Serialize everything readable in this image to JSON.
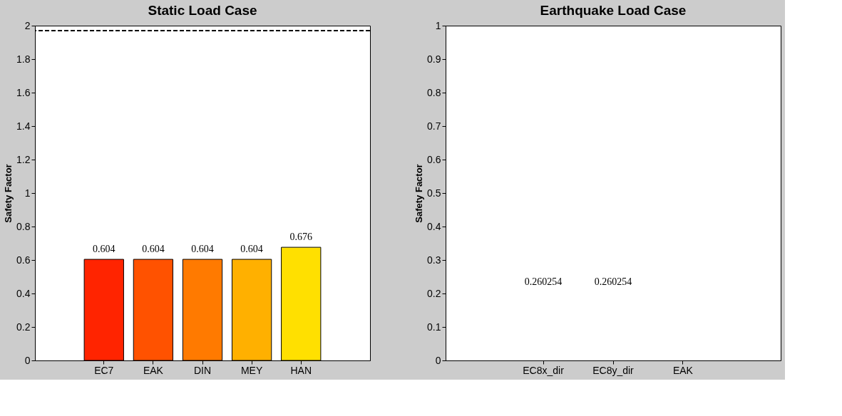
{
  "chart_data": [
    {
      "type": "bar",
      "title": "Static Load Case",
      "ylabel": "Safety Factor",
      "categories": [
        "EC7",
        "EAK",
        "DIN",
        "MEY",
        "HAN"
      ],
      "values": [
        0.604,
        0.604,
        0.604,
        0.604,
        0.676
      ],
      "colors": [
        "#ff2400",
        "#ff5200",
        "#ff7a00",
        "#ffb000",
        "#ffe000"
      ],
      "data_labels": true,
      "ylim": [
        0,
        2
      ],
      "yticks": [
        0,
        0.2,
        0.4,
        0.6,
        0.8,
        1,
        1.2,
        1.4,
        1.6,
        1.8,
        2
      ],
      "ref_lines": [
        {
          "axis": "y",
          "value": 1.97,
          "color": "#000000",
          "line_style": "dashed"
        }
      ],
      "grid": false
    },
    {
      "type": "bar",
      "title": "Earthquake Load Case",
      "ylabel": "Safety Factor",
      "categories": [
        "EC8x_dir",
        "EC8y_dir",
        "EAK"
      ],
      "values": [
        null,
        null,
        null
      ],
      "ylim": [
        0,
        1
      ],
      "yticks": [
        0,
        0.1,
        0.2,
        0.3,
        0.4,
        0.5,
        0.6,
        0.7,
        0.8,
        0.9,
        1
      ],
      "annotations": [
        "0.260254",
        "0.260254"
      ],
      "grid": false
    }
  ]
}
